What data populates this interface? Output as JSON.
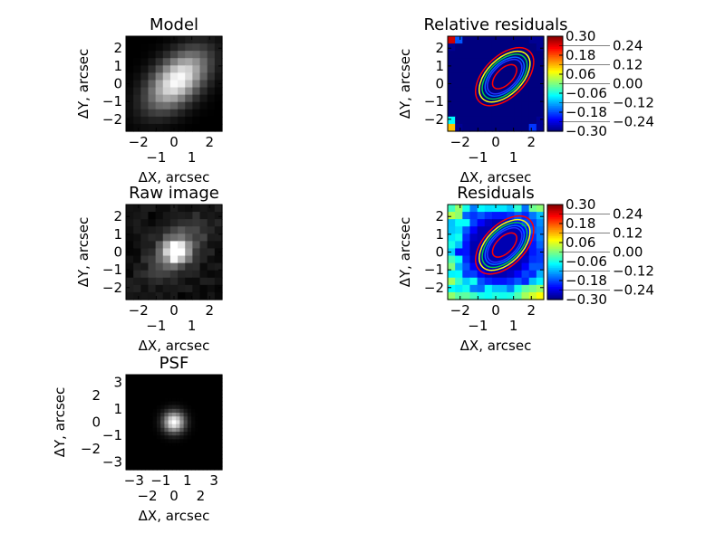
{
  "chart_data": [
    {
      "type": "heatmap",
      "title": "Model",
      "xlabel": "ΔX, arcsec",
      "ylabel": "ΔY, arcsec",
      "xticks": [
        "−2",
        "−1",
        "0",
        "1",
        "2"
      ],
      "yticks": [
        "2",
        "1",
        "0",
        "−1",
        "−2"
      ],
      "range": [
        -2.7,
        2.7
      ],
      "grid": [
        13,
        13
      ],
      "cmap": "gray",
      "source": {
        "kind": "gauss",
        "sx": 1.4,
        "sy": 0.8,
        "angle": 45,
        "noise": 0
      }
    },
    {
      "type": "heatmap",
      "title": "Relative residuals",
      "xlabel": "ΔX, arcsec",
      "ylabel": "ΔY, arcsec",
      "xticks": [
        "−2",
        "−1",
        "0",
        "1",
        "2"
      ],
      "yticks": [
        "2",
        "1",
        "0",
        "−1",
        "−2"
      ],
      "range": [
        -2.7,
        2.7
      ],
      "grid": [
        13,
        13
      ],
      "cmap": "jet",
      "clim": [
        -0.3,
        0.3
      ],
      "colorbar_ticks": [
        "0.30",
        "0.24",
        "0.18",
        "0.12",
        "0.06",
        "0.00",
        "−0.06",
        "−0.12",
        "−0.18",
        "−0.24",
        "−0.30"
      ],
      "contours": true,
      "source": {
        "kind": "relres"
      }
    },
    {
      "type": "heatmap",
      "title": "Raw image",
      "xlabel": "ΔX, arcsec",
      "ylabel": "ΔY, arcsec",
      "xticks": [
        "−2",
        "−1",
        "0",
        "1",
        "2"
      ],
      "yticks": [
        "2",
        "1",
        "0",
        "−1",
        "−2"
      ],
      "range": [
        -2.7,
        2.7
      ],
      "grid": [
        13,
        13
      ],
      "cmap": "gray",
      "source": {
        "kind": "raw"
      }
    },
    {
      "type": "heatmap",
      "title": "Residuals",
      "xlabel": "ΔX, arcsec",
      "ylabel": "ΔY, arcsec",
      "xticks": [
        "−2",
        "−1",
        "0",
        "1",
        "2"
      ],
      "yticks": [
        "2",
        "1",
        "0",
        "−1",
        "−2"
      ],
      "range": [
        -2.7,
        2.7
      ],
      "grid": [
        13,
        13
      ],
      "cmap": "jet",
      "clim": [
        -0.3,
        0.3
      ],
      "colorbar_ticks": [
        "0.30",
        "0.24",
        "0.18",
        "0.12",
        "0.06",
        "0.00",
        "−0.06",
        "−0.12",
        "−0.18",
        "−0.24",
        "−0.30"
      ],
      "contours": true,
      "source": {
        "kind": "res"
      }
    },
    {
      "type": "heatmap",
      "title": "PSF",
      "xlabel": "ΔX, arcsec",
      "ylabel": "ΔY, arcsec",
      "xticks": [
        "−3",
        "−2",
        "−1",
        "0",
        "1",
        "2",
        "3"
      ],
      "yticks": [
        "3",
        "2",
        "1",
        "0",
        "−1",
        "−2",
        "−3"
      ],
      "range": [
        -3.6,
        3.6
      ],
      "grid": [
        25,
        25
      ],
      "cmap": "gray",
      "source": {
        "kind": "psf"
      }
    }
  ]
}
